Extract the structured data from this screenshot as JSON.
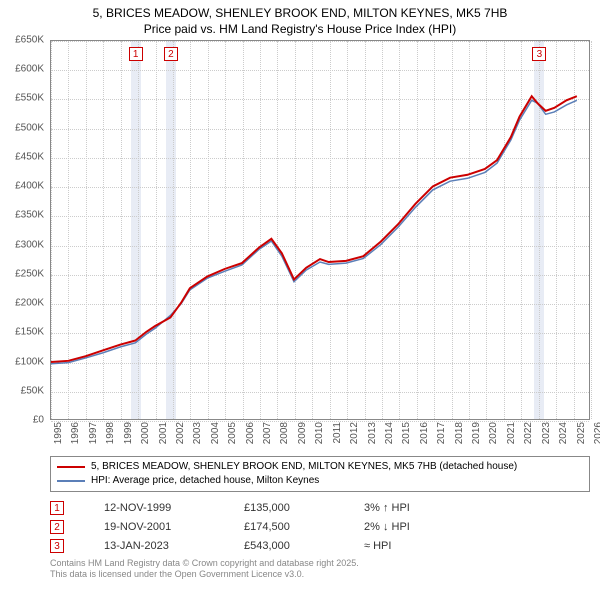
{
  "title_line1": "5, BRICES MEADOW, SHENLEY BROOK END, MILTON KEYNES, MK5 7HB",
  "title_line2": "Price paid vs. HM Land Registry's House Price Index (HPI)",
  "chart": {
    "type": "line",
    "background_color": "#ffffff",
    "grid_color": "#cccccc",
    "axis_color": "#888888",
    "font_size_axis": 10,
    "xlim": [
      1995,
      2026
    ],
    "ylim": [
      0,
      650000
    ],
    "ytick_step": 50000,
    "yticks": [
      "£0",
      "£50K",
      "£100K",
      "£150K",
      "£200K",
      "£250K",
      "£300K",
      "£350K",
      "£400K",
      "£450K",
      "£500K",
      "£550K",
      "£600K",
      "£650K"
    ],
    "xticks": [
      1995,
      1996,
      1997,
      1998,
      1999,
      2000,
      2001,
      2002,
      2003,
      2004,
      2005,
      2006,
      2007,
      2008,
      2009,
      2010,
      2011,
      2012,
      2013,
      2014,
      2015,
      2016,
      2017,
      2018,
      2019,
      2020,
      2021,
      2022,
      2023,
      2024,
      2025,
      2026
    ],
    "marker_band_color": "#e8ecf5",
    "markers": [
      {
        "n": "1",
        "year": 1999.86
      },
      {
        "n": "2",
        "year": 2001.88
      },
      {
        "n": "3",
        "year": 2023.04
      }
    ],
    "series": [
      {
        "name": "price_paid",
        "color": "#cc0000",
        "line_width": 2,
        "points": [
          [
            1995,
            98000
          ],
          [
            1996,
            100000
          ],
          [
            1997,
            108000
          ],
          [
            1998,
            118000
          ],
          [
            1999,
            128000
          ],
          [
            1999.86,
            135000
          ],
          [
            2000.5,
            150000
          ],
          [
            2001,
            160000
          ],
          [
            2001.88,
            174500
          ],
          [
            2002.5,
            200000
          ],
          [
            2003,
            225000
          ],
          [
            2004,
            245000
          ],
          [
            2005,
            258000
          ],
          [
            2006,
            268000
          ],
          [
            2007,
            295000
          ],
          [
            2007.7,
            310000
          ],
          [
            2008.3,
            285000
          ],
          [
            2009,
            240000
          ],
          [
            2009.7,
            260000
          ],
          [
            2010.5,
            275000
          ],
          [
            2011,
            270000
          ],
          [
            2012,
            272000
          ],
          [
            2013,
            280000
          ],
          [
            2014,
            305000
          ],
          [
            2015,
            335000
          ],
          [
            2016,
            370000
          ],
          [
            2017,
            400000
          ],
          [
            2018,
            415000
          ],
          [
            2019,
            420000
          ],
          [
            2020,
            430000
          ],
          [
            2020.7,
            445000
          ],
          [
            2021.5,
            485000
          ],
          [
            2022,
            520000
          ],
          [
            2022.7,
            555000
          ],
          [
            2023.04,
            543000
          ],
          [
            2023.5,
            530000
          ],
          [
            2024,
            535000
          ],
          [
            2024.7,
            548000
          ],
          [
            2025.3,
            555000
          ]
        ]
      },
      {
        "name": "hpi",
        "color": "#5b7fb8",
        "line_width": 1.5,
        "points": [
          [
            1995,
            95000
          ],
          [
            1996,
            97000
          ],
          [
            1997,
            105000
          ],
          [
            1998,
            114000
          ],
          [
            1999,
            124000
          ],
          [
            1999.86,
            131000
          ],
          [
            2000.5,
            146000
          ],
          [
            2001,
            156000
          ],
          [
            2001.88,
            178000
          ],
          [
            2002.5,
            198000
          ],
          [
            2003,
            222000
          ],
          [
            2004,
            242000
          ],
          [
            2005,
            254000
          ],
          [
            2006,
            265000
          ],
          [
            2007,
            292000
          ],
          [
            2007.7,
            306000
          ],
          [
            2008.3,
            280000
          ],
          [
            2009,
            236000
          ],
          [
            2009.7,
            256000
          ],
          [
            2010.5,
            270000
          ],
          [
            2011,
            266000
          ],
          [
            2012,
            268000
          ],
          [
            2013,
            276000
          ],
          [
            2014,
            300000
          ],
          [
            2015,
            330000
          ],
          [
            2016,
            364000
          ],
          [
            2017,
            394000
          ],
          [
            2018,
            409000
          ],
          [
            2019,
            414000
          ],
          [
            2020,
            424000
          ],
          [
            2020.7,
            440000
          ],
          [
            2021.5,
            480000
          ],
          [
            2022,
            514000
          ],
          [
            2022.7,
            548000
          ],
          [
            2023.04,
            543000
          ],
          [
            2023.5,
            524000
          ],
          [
            2024,
            528000
          ],
          [
            2024.7,
            540000
          ],
          [
            2025.3,
            548000
          ]
        ]
      }
    ]
  },
  "legend": {
    "items": [
      {
        "color": "#cc0000",
        "width": 2,
        "label": "5, BRICES MEADOW, SHENLEY BROOK END, MILTON KEYNES, MK5 7HB (detached house)"
      },
      {
        "color": "#5b7fb8",
        "width": 1.5,
        "label": "HPI: Average price, detached house, Milton Keynes"
      }
    ]
  },
  "transactions": [
    {
      "n": "1",
      "date": "12-NOV-1999",
      "price": "£135,000",
      "hpi": "3% ↑ HPI"
    },
    {
      "n": "2",
      "date": "19-NOV-2001",
      "price": "£174,500",
      "hpi": "2% ↓ HPI"
    },
    {
      "n": "3",
      "date": "13-JAN-2023",
      "price": "£543,000",
      "hpi": "≈ HPI"
    }
  ],
  "footer_line1": "Contains HM Land Registry data © Crown copyright and database right 2025.",
  "footer_line2": "This data is licensed under the Open Government Licence v3.0."
}
